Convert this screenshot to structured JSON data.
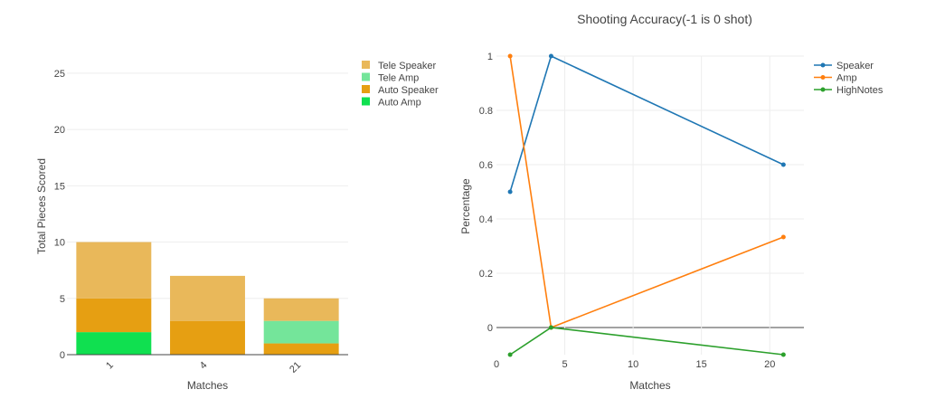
{
  "chart_data": [
    {
      "type": "bar",
      "stacked": true,
      "title": "",
      "xlabel": "Matches",
      "ylabel": "Total Pieces Scored",
      "categories": [
        "1",
        "4",
        "21"
      ],
      "ylim": [
        0,
        27
      ],
      "yticks": [
        0,
        5,
        10,
        15,
        20,
        25
      ],
      "grid": true,
      "legend_position": "top-right",
      "series": [
        {
          "name": "Auto Amp",
          "values": [
            2,
            0,
            0
          ],
          "color": "#10e050"
        },
        {
          "name": "Auto Speaker",
          "values": [
            3,
            3,
            1
          ],
          "color": "#e69f12"
        },
        {
          "name": "Tele Amp",
          "values": [
            0,
            0,
            2
          ],
          "color": "#74e59a"
        },
        {
          "name": "Tele Speaker",
          "values": [
            5,
            4,
            2
          ],
          "color": "#e9b85a"
        }
      ],
      "legend_order": [
        "Tele Speaker",
        "Tele Amp",
        "Auto Speaker",
        "Auto Amp"
      ]
    },
    {
      "type": "line",
      "title": "Shooting Accuracy(-1 is 0 shot)",
      "xlabel": "Matches",
      "ylabel": "Percentage",
      "xlim": [
        0,
        22.5
      ],
      "ylim": [
        -0.1,
        1
      ],
      "xticks": [
        0,
        5,
        10,
        15,
        20
      ],
      "yticks": [
        0,
        0.2,
        0.4,
        0.6,
        0.8,
        1
      ],
      "ytick_labels": [
        "0",
        "0.2",
        "0.4",
        "0.6",
        "0.8",
        "1"
      ],
      "grid": true,
      "legend_position": "top-right",
      "series": [
        {
          "name": "Speaker",
          "x": [
            1,
            4,
            21
          ],
          "y": [
            0.5,
            1,
            0.6
          ],
          "color": "#1f77b4"
        },
        {
          "name": "Amp",
          "x": [
            1,
            4,
            21
          ],
          "y": [
            1,
            0,
            0.3333
          ],
          "color": "#ff7f0e"
        },
        {
          "name": "HighNotes",
          "x": [
            1,
            4,
            21
          ],
          "y": [
            -0.1,
            0,
            -0.1
          ],
          "color": "#2ca02c"
        }
      ]
    }
  ]
}
